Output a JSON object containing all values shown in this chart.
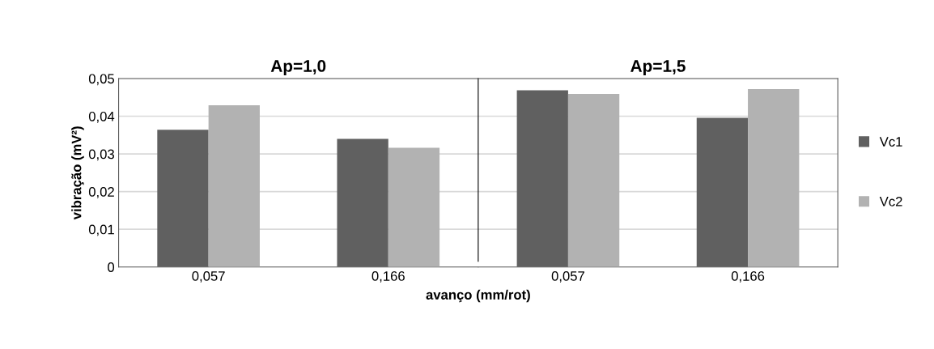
{
  "chart_data": [
    {
      "type": "bar",
      "title": "Ap=1,0",
      "ylabel": "vibração (mV²)",
      "xlabel": "avanço (mm/rot)",
      "categories": [
        "0,057",
        "0,166"
      ],
      "series": [
        {
          "name": "Vc1",
          "color": "#606060",
          "values": [
            0.0364,
            0.034
          ]
        },
        {
          "name": "Vc2",
          "color": "#b2b2b2",
          "values": [
            0.0429,
            0.0316
          ]
        }
      ],
      "ylim": [
        0,
        0.05
      ],
      "yticks": [
        0,
        {
          "value": 0.01,
          "label": "0,01"
        },
        {
          "value": 0.02,
          "label": "0,02"
        },
        {
          "value": 0.03,
          "label": "0,03"
        },
        {
          "value": 0.04,
          "label": "0,04"
        },
        {
          "value": 0.05,
          "label": "0,05"
        }
      ],
      "grid": "y",
      "legend": "right"
    },
    {
      "type": "bar",
      "title": "Ap=1,5",
      "categories": [
        "0,057",
        "0,166"
      ],
      "series": [
        {
          "color": "#606060",
          "values": [
            0.0469,
            0.0396
          ]
        },
        {
          "color": "#b2b2b2",
          "values": [
            0.0459,
            0.0472
          ]
        }
      ],
      "ylim": [
        0,
        0.05
      ],
      "yticks": [
        {
          "value": 0,
          "label": null
        },
        {
          "value": 0.01,
          "label": null
        },
        {
          "value": 0.02,
          "label": null
        },
        {
          "value": 0.03,
          "label": null
        },
        {
          "value": 0.04,
          "label": null
        },
        {
          "value": 0.05,
          "label": null
        }
      ],
      "tick_labels": "x",
      "grid": "y"
    }
  ]
}
